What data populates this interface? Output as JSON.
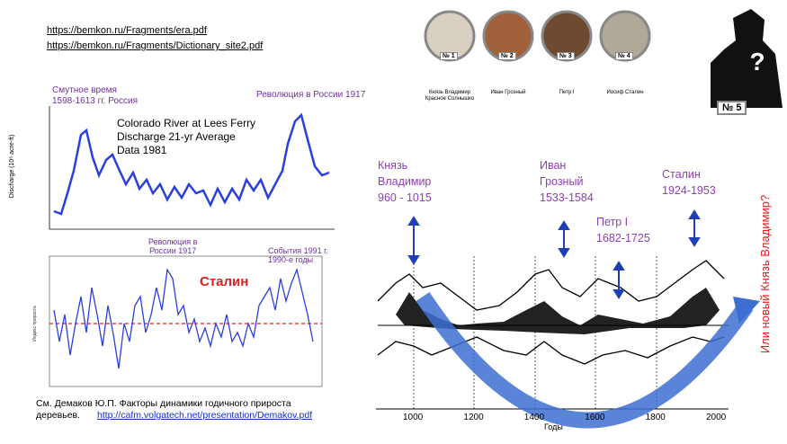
{
  "links": [
    "https://bemkon.ru/Fragments/era.pdf",
    "https://bemkon.ru/Fragments/Dictionary_site2.pdf"
  ],
  "left_top_chart": {
    "annotations": [
      "Смутное время",
      "1598-1613 гг. Россия",
      "Революция в России 1917"
    ],
    "title": [
      "Colorado River at Lees Ferry",
      "Discharge 21-yr Average",
      "Data 1981"
    ],
    "y_label": "Discharge (10⁶ acre-ft)"
  },
  "left_bottom_chart": {
    "annotations": [
      "Революция в\nРоссии 1917",
      "Сталин",
      "События 1991 г.\n1990-е годы"
    ]
  },
  "reference": {
    "text": "См. Демаков Ю.П. Факторы динамики годичного прироста\nдеревьев.",
    "link": "http://cafm.volgatech.net/presentation/Demakov.pdf"
  },
  "portraits": [
    {
      "number": "№ 1",
      "caption": "Князь Владимир Красное Солнышко"
    },
    {
      "number": "№ 2",
      "caption": "Иван Грозный"
    },
    {
      "number": "№ 3",
      "caption": "Петр I"
    },
    {
      "number": "№ 4",
      "caption": "Иосиф Сталин"
    }
  ],
  "right": {
    "unknown": "№ 5",
    "rulers": [
      "Князь\nВладимир\n960 - 1015",
      "Иван\nГрозный\n1533-1584",
      "Петр I\n1682-1725",
      "Сталин\n1924-1953"
    ],
    "question": "Или новый Князь Владимир?",
    "xticks": [
      1000,
      1200,
      1400,
      1600,
      1800,
      2000
    ],
    "x_label": "Годы"
  }
}
